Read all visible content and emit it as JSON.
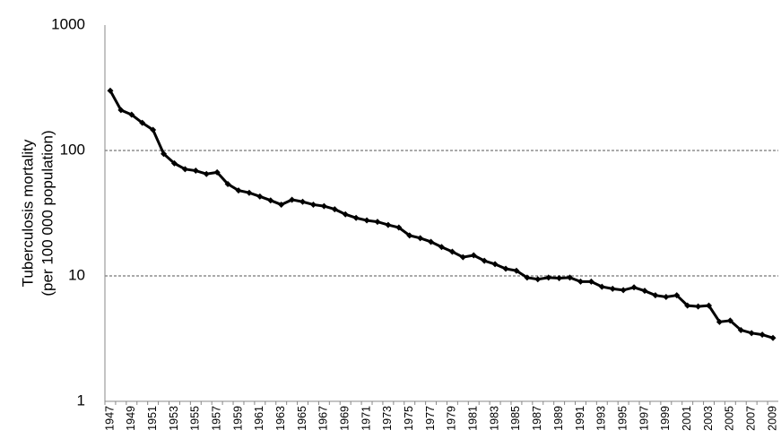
{
  "chart_data": {
    "type": "line",
    "ylabel": [
      "Tuberculosis mortality",
      "(per 100 000 population)"
    ],
    "categories": [
      "1947",
      null,
      "1949",
      null,
      "1951",
      null,
      "1953",
      null,
      "1955",
      null,
      "1957",
      null,
      "1959",
      null,
      "1961",
      null,
      "1963",
      null,
      "1965",
      null,
      "1967",
      null,
      "1969",
      null,
      "1971",
      null,
      "1973",
      null,
      "1975",
      null,
      "1977",
      null,
      "1979",
      null,
      "1981",
      null,
      "1983",
      null,
      "1985",
      null,
      "1987",
      null,
      "1989",
      null,
      "1991",
      null,
      "1993",
      null,
      "1995",
      null,
      "1997",
      null,
      "1999",
      null,
      "2001",
      null,
      "2003",
      null,
      "2005",
      null,
      "2007",
      null,
      "2009"
    ],
    "values": [
      300,
      210,
      193,
      166,
      146,
      94,
      79,
      71,
      69,
      65,
      67,
      54,
      48,
      46,
      43,
      40,
      37,
      40.5,
      39,
      37,
      36,
      34,
      31,
      29,
      27.7,
      27,
      25.5,
      24.3,
      21,
      20,
      18.7,
      17,
      15.6,
      14.1,
      14.6,
      13.2,
      12.4,
      11.4,
      11,
      9.7,
      9.4,
      9.7,
      9.6,
      9.7,
      9.0,
      9.0,
      8.2,
      7.9,
      7.7,
      8.1,
      7.6,
      7.0,
      6.8,
      7.0,
      5.8,
      5.7,
      5.8,
      4.3,
      4.4,
      3.7,
      3.5,
      3.4,
      3.2
    ],
    "color": "#000000",
    "log_scale": true,
    "ylim": [
      1,
      1000
    ],
    "yticks": [
      1,
      10,
      100,
      1000
    ],
    "grid": true
  }
}
